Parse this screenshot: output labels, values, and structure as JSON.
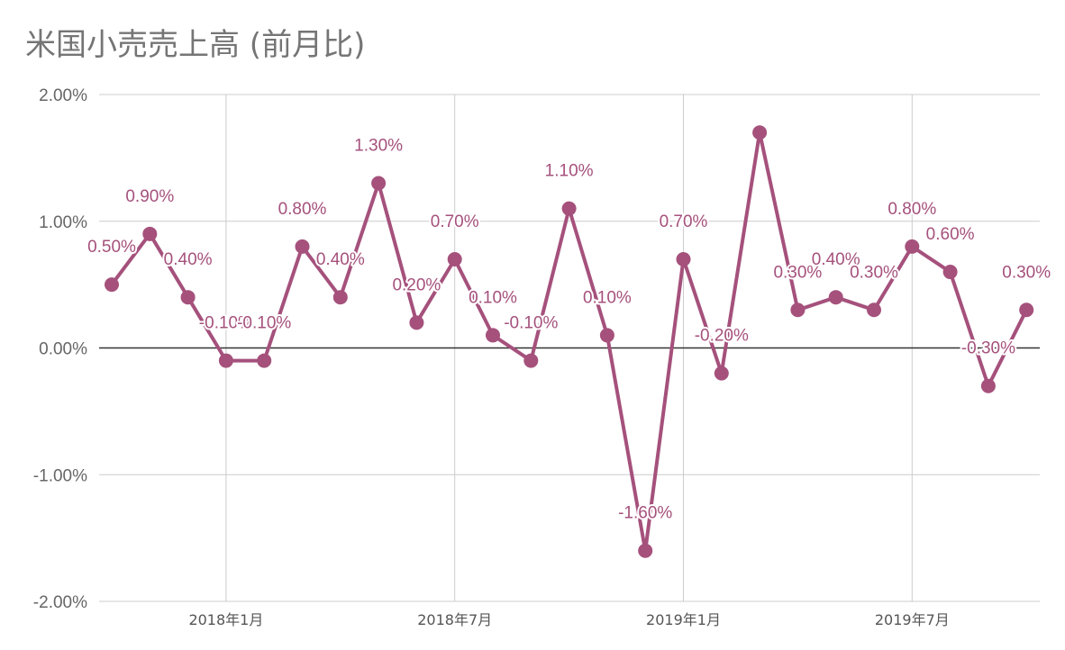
{
  "chart_data": {
    "type": "line",
    "title": "米国小売売上高 (前月比)",
    "xlabel": "",
    "ylabel": "",
    "x": [
      "2017-10",
      "2017-11",
      "2017-12",
      "2018-01",
      "2018-02",
      "2018-03",
      "2018-04",
      "2018-05",
      "2018-06",
      "2018-07",
      "2018-08",
      "2018-09",
      "2018-10",
      "2018-11",
      "2018-12",
      "2019-01",
      "2019-02",
      "2019-03",
      "2019-04",
      "2019-05",
      "2019-06",
      "2019-07",
      "2019-08",
      "2019-09",
      "2019-10"
    ],
    "x_tick_labels": [
      {
        "x": "2018-01",
        "label": "2018年1月"
      },
      {
        "x": "2018-07",
        "label": "2018年7月"
      },
      {
        "x": "2019-01",
        "label": "2019年1月"
      },
      {
        "x": "2019-07",
        "label": "2019年7月"
      }
    ],
    "y_tick_labels": [
      "2.00%",
      "1.00%",
      "0.00%",
      "-1.00%",
      "-2.00%"
    ],
    "ylim": [
      -2.0,
      2.0
    ],
    "grid": true,
    "series": [
      {
        "values": [
          0.5,
          0.9,
          0.4,
          -0.1,
          -0.1,
          0.8,
          0.4,
          1.3,
          0.2,
          0.7,
          0.1,
          -0.1,
          1.1,
          0.1,
          -1.6,
          0.7,
          -0.2,
          1.7,
          0.3,
          0.4,
          0.3,
          0.8,
          0.6,
          -0.3,
          0.3
        ],
        "data_labels": [
          "0.50%",
          "0.90%",
          "0.40%",
          "-0.10%",
          "-0.10%",
          "0.80%",
          "0.40%",
          "1.30%",
          "0.20%",
          "0.70%",
          "0.10%",
          "-0.10%",
          "1.10%",
          "0.10%",
          "-1.60%",
          "0.70%",
          "-0.20%",
          "",
          "0.30%",
          "0.40%",
          "0.30%",
          "0.80%",
          "0.60%",
          "-0.30%",
          "0.30%"
        ],
        "color": "#a5517c"
      }
    ],
    "colors": {
      "line": "#a5517c",
      "label": "#a5517c",
      "grid": "#cccccc",
      "zero_line": "#333333",
      "tick_text": "#666666",
      "title_text": "#757575"
    }
  }
}
